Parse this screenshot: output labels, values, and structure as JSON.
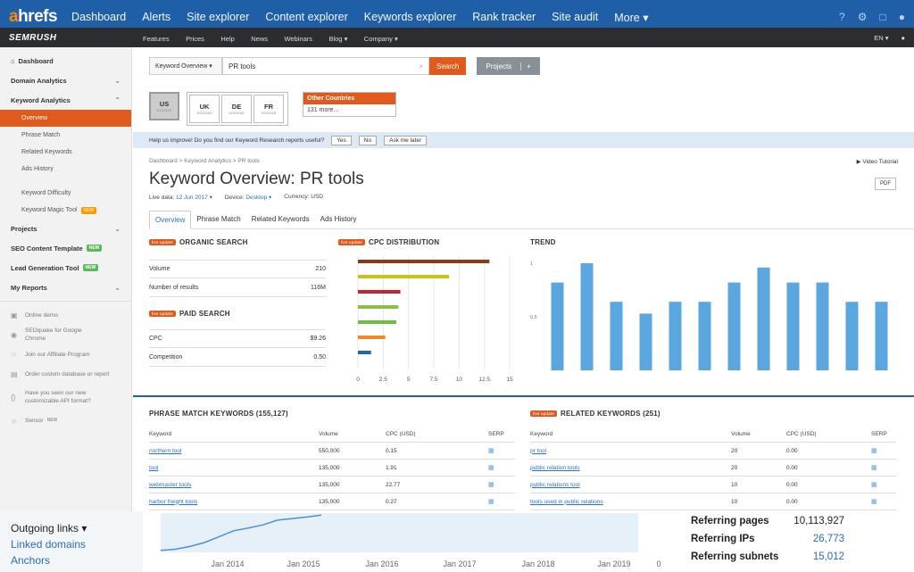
{
  "ahrefs": {
    "logo_a": "a",
    "logo_rest": "hrefs",
    "nav": [
      "Dashboard",
      "Alerts",
      "Site explorer",
      "Content explorer",
      "Keywords explorer",
      "Rank tracker",
      "Site audit",
      "More ▾"
    ],
    "icons": [
      "help-icon",
      "bell-icon",
      "monitor-icon",
      "user-icon"
    ]
  },
  "semrush": {
    "logo": "SEMRUSH",
    "nav": [
      "Features",
      "Prices",
      "Help",
      "News",
      "Webinars",
      "Blog ▾",
      "Company ▾"
    ],
    "lang": "EN ▾",
    "user_icon": "user-icon"
  },
  "sidebar": {
    "dashboard": "Dashboard",
    "domain_analytics": "Domain Analytics",
    "keyword_analytics": "Keyword Analytics",
    "overview": "Overview",
    "phrase_match": "Phrase Match",
    "related_keywords": "Related Keywords",
    "ads_history": "Ads History",
    "keyword_difficulty": "Keyword Difficulty",
    "keyword_magic": "Keyword Magic Tool",
    "new_badge": "NEW",
    "projects": "Projects",
    "seo_content": "SEO Content Template",
    "lead_gen": "Lead Generation Tool",
    "my_reports": "My Reports",
    "online_demo": "Online demo",
    "seoquake": "SEOquake for Google Chrome",
    "affiliate": "Join our Affiliate Program",
    "order_db": "Order custom database or report",
    "api_format": "Have you seen our new customizable API format?",
    "sensor": "Sensor"
  },
  "search": {
    "type": "Keyword Overview ▾",
    "value": "PR tools",
    "button": "Search",
    "projects": "Projects",
    "plus": "+"
  },
  "databases": {
    "us": "US",
    "uk": "UK",
    "de": "DE",
    "fr": "FR",
    "other_title": "Other Countries",
    "other_value": "131 more..."
  },
  "help_bar": {
    "text": "Help us improve! Do you find our Keyword Research reports useful?",
    "yes": "Yes",
    "no": "No",
    "later": "Ask me later"
  },
  "breadcrumb": "Dashboard  >  Keyword Analytics  >  PR tools",
  "video_tutorial": "▶ Video Tutorial",
  "title": "Keyword Overview: PR tools",
  "pdf": "PDF",
  "meta": {
    "live_date_label": "Live data:",
    "live_date": "12 Jun 2017 ▾",
    "device_label": "Device:",
    "device": "Desktop ▾",
    "currency": "Currency: USD"
  },
  "tabs": [
    "Overview",
    "Phrase Match",
    "Related Keywords",
    "Ads History"
  ],
  "live_badge": "live update",
  "organic": {
    "title": "ORGANIC SEARCH",
    "rows": [
      {
        "label": "Volume",
        "value": "210"
      },
      {
        "label": "Number of results",
        "value": "116M"
      }
    ]
  },
  "paid": {
    "title": "PAID SEARCH",
    "rows": [
      {
        "label": "CPC",
        "value": "$9.26"
      },
      {
        "label": "Competition",
        "value": "0.50"
      }
    ]
  },
  "cpc_title": "CPC DISTRIBUTION",
  "trend_title": "TREND",
  "chart_data": [
    {
      "type": "bar",
      "title": "CPC DISTRIBUTION",
      "orientation": "horizontal",
      "xlim": [
        0,
        15
      ],
      "xticks": [
        "0",
        "2.5",
        "5",
        "7.5",
        "10",
        "12.5",
        "15"
      ],
      "series": [
        {
          "values": [
            13.0,
            9.0,
            4.2,
            4.0,
            3.8,
            2.7,
            1.3
          ]
        }
      ],
      "bar_colors": [
        "#8b3a1a",
        "#c9c318",
        "#c0262d",
        "#8cbf3f",
        "#6cbf3f",
        "#f08b21",
        "#1f66b5"
      ]
    },
    {
      "type": "bar",
      "title": "TREND",
      "yticks": [
        "0.5",
        "1"
      ],
      "ylim": [
        0,
        1.05
      ],
      "values": [
        0.82,
        1.0,
        0.64,
        0.53,
        0.64,
        0.64,
        0.82,
        0.96,
        0.82,
        0.82,
        0.64,
        0.64
      ],
      "bar_color": "#5aa6df"
    },
    {
      "type": "area",
      "title": "",
      "x_ticks": [
        "Jan 2014",
        "Jan 2015",
        "Jan 2016",
        "Jan 2017",
        "Jan 2018",
        "Jan 2019",
        "0"
      ],
      "values": [
        0.05,
        0.08,
        0.15,
        0.25,
        0.4,
        0.55,
        0.62,
        0.7,
        0.82,
        0.86,
        0.9,
        0.95
      ],
      "line_color": "#4e8fd0",
      "fill_color": "#e6f0f9"
    }
  ],
  "phrase_match": {
    "title": "PHRASE MATCH KEYWORDS (155,127)",
    "headers": [
      "Keyword",
      "Volume",
      "CPC (USD)",
      "SERP"
    ],
    "rows": [
      [
        "northern tool",
        "550,000",
        "0.15"
      ],
      [
        "tool",
        "135,000",
        "1.91"
      ],
      [
        "webmaster tools",
        "135,000",
        "22.77"
      ],
      [
        "harbor freight tools",
        "135,000",
        "0.27"
      ]
    ]
  },
  "related": {
    "title": "RELATED KEYWORDS (251)",
    "headers": [
      "Keyword",
      "Volume",
      "CPC (USD)",
      "SERP"
    ],
    "rows": [
      [
        "pr tool",
        "20",
        "0.00"
      ],
      [
        "public relation tools",
        "20",
        "0.00"
      ],
      [
        "public relations tool",
        "10",
        "0.00"
      ],
      [
        "tools used in public relations",
        "10",
        "0.00"
      ]
    ]
  },
  "ah_left": {
    "outgoing": "Outgoing links ▾",
    "linked": "Linked domains",
    "anchors": "Anchors"
  },
  "ah_right": [
    {
      "label": "Referring pages",
      "value": "10,113,927"
    },
    {
      "label": "Referring IPs",
      "value": "26,773"
    },
    {
      "label": "Referring subnets",
      "value": "15,012"
    }
  ]
}
